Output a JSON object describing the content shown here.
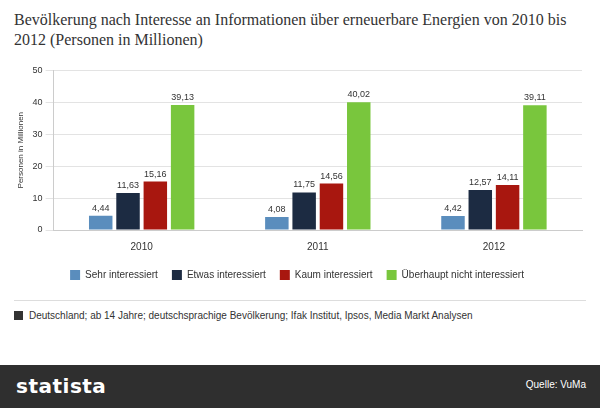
{
  "chart_data": {
    "type": "bar",
    "title": "Bevölkerung nach Interesse an Informationen über erneuerbare Energien von 2010 bis 2012 (Personen in Millionen)",
    "y_label": "Personen in Millionen",
    "categories": [
      "2010",
      "2011",
      "2012"
    ],
    "series": [
      {
        "name": "Sehr interessiert",
        "color": "#5a8dbd",
        "values": [
          4.44,
          4.08,
          4.42
        ],
        "value_labels": [
          "4,44",
          "4,08",
          "4,42"
        ]
      },
      {
        "name": "Etwas interessiert",
        "color": "#1c2b42",
        "values": [
          11.63,
          11.75,
          12.57
        ],
        "value_labels": [
          "11,63",
          "11,75",
          "12,57"
        ]
      },
      {
        "name": "Kaum interessiert",
        "color": "#a8170f",
        "values": [
          15.16,
          14.56,
          14.11
        ],
        "value_labels": [
          "15,16",
          "14,56",
          "14,11"
        ]
      },
      {
        "name": "Überhaupt nicht interessiert",
        "color": "#79c63d",
        "values": [
          39.13,
          40.02,
          39.11
        ],
        "value_labels": [
          "39,13",
          "40,02",
          "39,11"
        ]
      }
    ],
    "ylim": [
      0,
      50
    ],
    "yticks": [
      0,
      10,
      20,
      30,
      40,
      50
    ],
    "grid": true,
    "legend": "bottom",
    "data_labels": true,
    "footnote": "Deutschland; ab 14 Jahre; deutschsprachige Bevölkerung; Ifak Institut, Ipsos, Media Markt Analysen",
    "logo": "statista",
    "source": "Quelle: VuMa"
  }
}
